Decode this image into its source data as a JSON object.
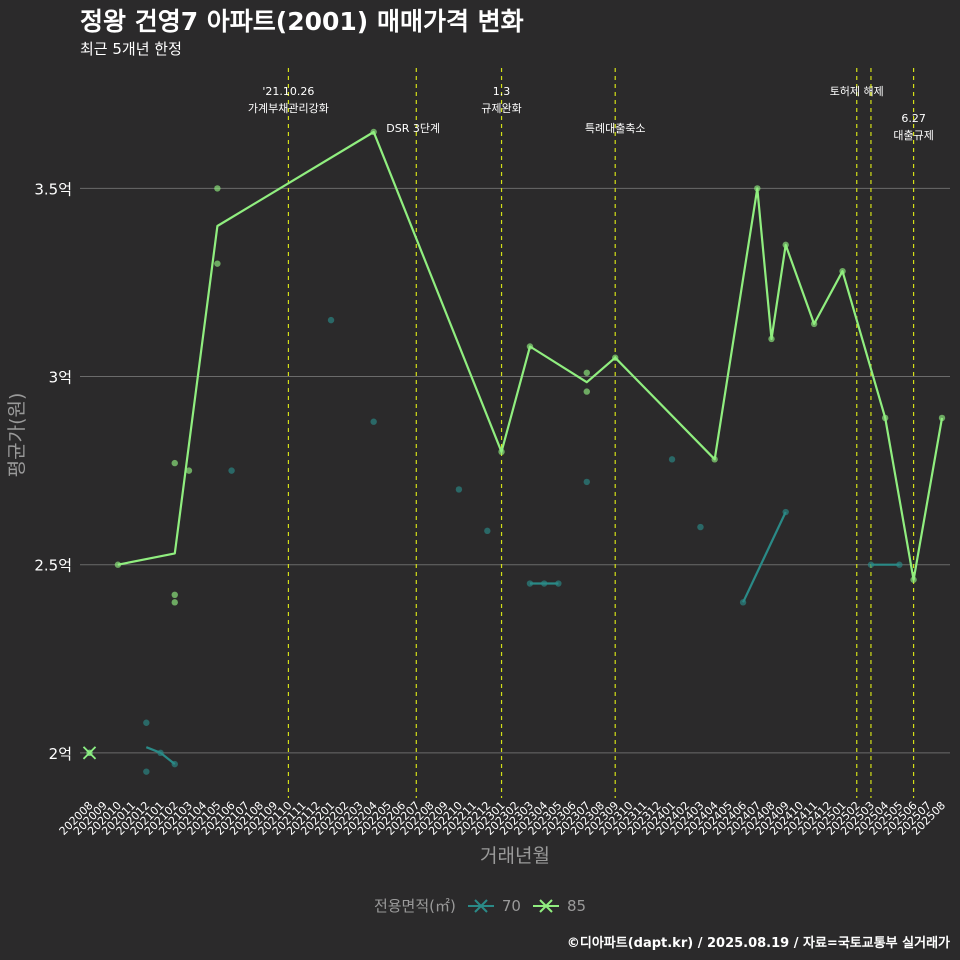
{
  "header": {
    "title": "정왕 건영7 아파트(2001) 매매가격 변화",
    "subtitle": "최근 5개년 한정"
  },
  "caption": "©디아파트(dapt.kr) / 2025.08.19 / 자료=국토교통부 실거래가",
  "colors": {
    "background": "#2b2a2b",
    "grid": "#6b6b6b",
    "event_line": "#d4e017",
    "series_70": "#2a8a87",
    "series_85": "#90ee7f",
    "axis_text": "#9a9a9a"
  },
  "chart_data": {
    "type": "line",
    "title": "정왕 건영7 아파트(2001) 매매가격 변화",
    "subtitle": "최근 5개년 한정",
    "xlabel": "거래년월",
    "ylabel": "평균가(원)",
    "ylim": [
      1.88,
      3.82
    ],
    "yticks": [
      {
        "value": 2.0,
        "label": "2억"
      },
      {
        "value": 2.5,
        "label": "2.5억"
      },
      {
        "value": 3.0,
        "label": "3억"
      },
      {
        "value": 3.5,
        "label": "3.5억"
      }
    ],
    "categories": [
      "202008",
      "202009",
      "202010",
      "202011",
      "202012",
      "202101",
      "202102",
      "202103",
      "202104",
      "202105",
      "202106",
      "202107",
      "202108",
      "202109",
      "202110",
      "202111",
      "202112",
      "202201",
      "202202",
      "202203",
      "202204",
      "202205",
      "202206",
      "202207",
      "202208",
      "202209",
      "202210",
      "202211",
      "202212",
      "202301",
      "202302",
      "202303",
      "202304",
      "202305",
      "202306",
      "202307",
      "202308",
      "202309",
      "202310",
      "202311",
      "202312",
      "202401",
      "202402",
      "202403",
      "202404",
      "202405",
      "202406",
      "202407",
      "202408",
      "202409",
      "202410",
      "202411",
      "202412",
      "202501",
      "202502",
      "202503",
      "202504",
      "202505",
      "202506",
      "202507",
      "202508"
    ],
    "legend": {
      "title": "전용면적(㎡)",
      "entries": [
        "70",
        "85"
      ]
    },
    "series": [
      {
        "name": "70",
        "line": [
          {
            "x": 0,
            "y": 2.0
          },
          {
            "x": 4,
            "y": 2.015
          },
          {
            "x": 5,
            "y": 2.0
          },
          {
            "x": 6,
            "y": 1.97
          },
          {
            "x": 31,
            "y": 2.45
          },
          {
            "x": 32,
            "y": 2.45
          },
          {
            "x": 33,
            "y": 2.45
          },
          {
            "x": 46,
            "y": 2.4
          },
          {
            "x": 49,
            "y": 2.64
          },
          {
            "x": 55,
            "y": 2.5
          },
          {
            "x": 57,
            "y": 2.5
          }
        ],
        "segments": [
          [
            0,
            0
          ],
          [
            1,
            3
          ],
          [
            4,
            6
          ],
          [
            7,
            8
          ],
          [
            9,
            10
          ]
        ],
        "points": [
          {
            "x": 0,
            "y": 2.0
          },
          {
            "x": 4,
            "y": 2.08
          },
          {
            "x": 4,
            "y": 1.95
          },
          {
            "x": 5,
            "y": 2.0
          },
          {
            "x": 6,
            "y": 1.97
          },
          {
            "x": 10,
            "y": 2.75
          },
          {
            "x": 17,
            "y": 3.15
          },
          {
            "x": 20,
            "y": 2.88
          },
          {
            "x": 26,
            "y": 2.7
          },
          {
            "x": 28,
            "y": 2.59
          },
          {
            "x": 31,
            "y": 2.45
          },
          {
            "x": 32,
            "y": 2.45
          },
          {
            "x": 33,
            "y": 2.45
          },
          {
            "x": 35,
            "y": 2.72
          },
          {
            "x": 41,
            "y": 2.78
          },
          {
            "x": 43,
            "y": 2.6
          },
          {
            "x": 46,
            "y": 2.4
          },
          {
            "x": 49,
            "y": 2.64
          },
          {
            "x": 55,
            "y": 2.5
          },
          {
            "x": 57,
            "y": 2.5
          }
        ]
      },
      {
        "name": "85",
        "line": [
          {
            "x": 0,
            "y": 2.0
          },
          {
            "x": 2,
            "y": 2.5
          },
          {
            "x": 6,
            "y": 2.53
          },
          {
            "x": 9,
            "y": 3.4
          },
          {
            "x": 20,
            "y": 3.65
          },
          {
            "x": 29,
            "y": 2.8
          },
          {
            "x": 31,
            "y": 3.08
          },
          {
            "x": 35,
            "y": 2.985
          },
          {
            "x": 37,
            "y": 3.05
          },
          {
            "x": 44,
            "y": 2.78
          },
          {
            "x": 47,
            "y": 3.5
          },
          {
            "x": 48,
            "y": 3.1
          },
          {
            "x": 49,
            "y": 3.35
          },
          {
            "x": 51,
            "y": 3.14
          },
          {
            "x": 53,
            "y": 3.28
          },
          {
            "x": 56,
            "y": 2.89
          },
          {
            "x": 58,
            "y": 2.46
          },
          {
            "x": 60,
            "y": 2.89
          }
        ],
        "segments": [
          [
            0,
            0
          ],
          [
            1,
            17
          ]
        ],
        "points": [
          {
            "x": 0,
            "y": 2.0
          },
          {
            "x": 2,
            "y": 2.5
          },
          {
            "x": 6,
            "y": 2.77
          },
          {
            "x": 6,
            "y": 2.42
          },
          {
            "x": 6,
            "y": 2.4
          },
          {
            "x": 7,
            "y": 2.75
          },
          {
            "x": 9,
            "y": 3.5
          },
          {
            "x": 9,
            "y": 3.3
          },
          {
            "x": 20,
            "y": 3.65
          },
          {
            "x": 29,
            "y": 2.8
          },
          {
            "x": 31,
            "y": 3.08
          },
          {
            "x": 35,
            "y": 3.01
          },
          {
            "x": 35,
            "y": 2.96
          },
          {
            "x": 37,
            "y": 3.05
          },
          {
            "x": 44,
            "y": 2.78
          },
          {
            "x": 47,
            "y": 3.5
          },
          {
            "x": 48,
            "y": 3.1
          },
          {
            "x": 49,
            "y": 3.35
          },
          {
            "x": 51,
            "y": 3.14
          },
          {
            "x": 53,
            "y": 3.28
          },
          {
            "x": 56,
            "y": 2.89
          },
          {
            "x": 58,
            "y": 2.46
          },
          {
            "x": 60,
            "y": 2.89
          }
        ]
      }
    ],
    "events": [
      {
        "x": 14,
        "lines": [
          "'21.10.26",
          "가계부채관리강화"
        ],
        "tier": 0,
        "anchor": "middle"
      },
      {
        "x": 23,
        "lines": [
          "DSR 3단계"
        ],
        "tier": 1,
        "anchor": "start"
      },
      {
        "x": 29,
        "lines": [
          "1.3",
          "규제완화"
        ],
        "tier": 0,
        "anchor": "middle"
      },
      {
        "x": 37,
        "lines": [
          "특례대출축소"
        ],
        "tier": 1,
        "anchor": "middle"
      },
      {
        "x": 54,
        "lines": [
          "토허제 해제"
        ],
        "tier": 0,
        "anchor": "middle"
      },
      {
        "x": 55,
        "lines": [],
        "tier": 0,
        "anchor": "middle"
      },
      {
        "x": 58,
        "lines": [
          "6.27",
          "대출규제"
        ],
        "tier": 2,
        "anchor": "middle"
      }
    ]
  }
}
